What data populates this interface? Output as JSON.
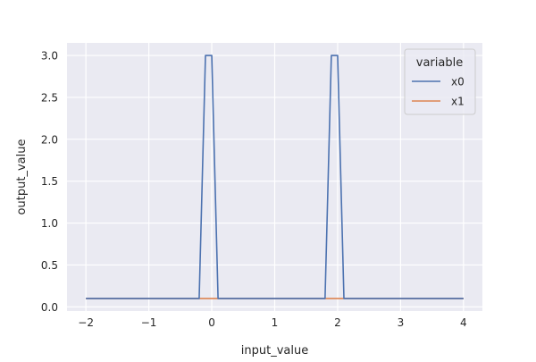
{
  "chart_data": {
    "type": "line",
    "title": "",
    "xlabel": "input_value",
    "ylabel": "output_value",
    "xlim": [
      -2.3,
      4.3
    ],
    "ylim": [
      -0.05,
      3.15
    ],
    "xticks": [
      -2,
      -1,
      0,
      1,
      2,
      3,
      4
    ],
    "xtick_labels": [
      "−2",
      "−1",
      "0",
      "1",
      "2",
      "3",
      "4"
    ],
    "yticks": [
      0.0,
      0.5,
      1.0,
      1.5,
      2.0,
      2.5,
      3.0
    ],
    "ytick_labels": [
      "0.0",
      "0.5",
      "1.0",
      "1.5",
      "2.0",
      "2.5",
      "3.0"
    ],
    "grid": true,
    "legend": {
      "title": "variable",
      "position": "top-right"
    },
    "series": [
      {
        "name": "x0",
        "color": "#4c72b0",
        "x": [
          -2.0,
          -0.2,
          -0.1,
          0.0,
          0.1,
          1.8,
          1.9,
          2.0,
          2.1,
          4.0
        ],
        "y": [
          0.1,
          0.1,
          3.0,
          3.0,
          0.1,
          0.1,
          3.0,
          3.0,
          0.1,
          0.1
        ]
      },
      {
        "name": "x1",
        "color": "#dd8452",
        "x": [
          -2.0,
          4.0
        ],
        "y": [
          0.1,
          0.1
        ]
      }
    ]
  }
}
